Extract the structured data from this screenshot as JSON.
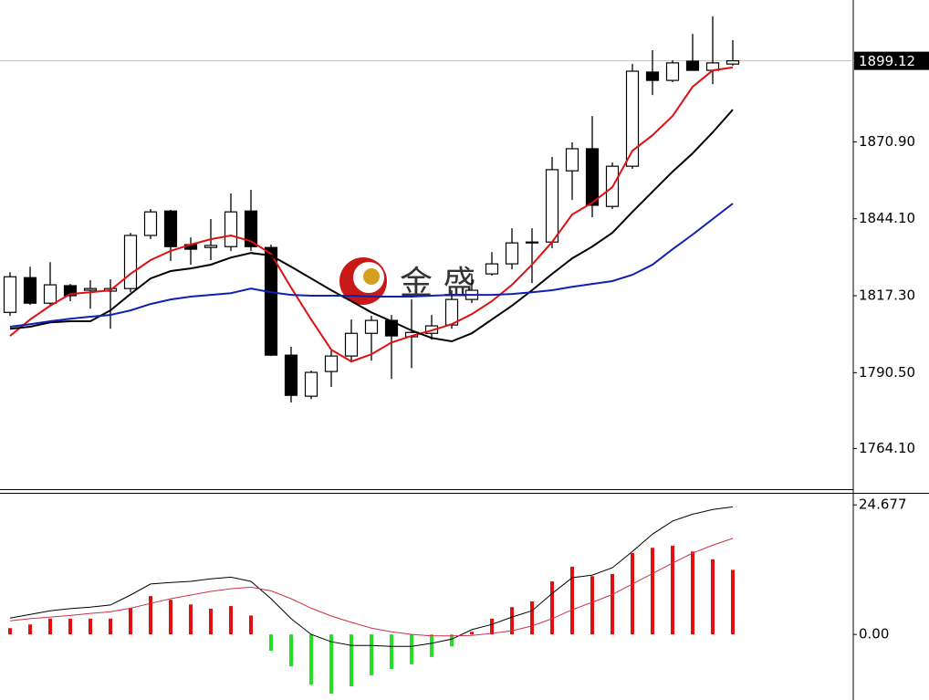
{
  "chart_data": [
    {
      "type": "candlestick",
      "open": [
        1811.5,
        1823.6,
        1814.7,
        1820.8,
        1819.2,
        1818.9,
        1819.8,
        1838.3,
        1846.8,
        1835.1,
        1834.1,
        1834.4,
        1846.8,
        1834.1,
        1796.6,
        1782.3,
        1790.9,
        1796.3,
        1804.2,
        1808.7,
        1803.0,
        1804.2,
        1807.1,
        1816.0,
        1824.9,
        1828.4,
        1835.7,
        1836.0,
        1860.8,
        1868.5,
        1848.4,
        1862.4,
        1895.2,
        1892.3,
        1899.0,
        1895.8,
        1898.0
      ],
      "high": [
        1825.5,
        1827.4,
        1829.0,
        1821.4,
        1822.7,
        1823.0,
        1839.2,
        1847.5,
        1847.2,
        1837.6,
        1844.0,
        1852.9,
        1854.2,
        1835.1,
        1799.5,
        1791.2,
        1798.2,
        1809.0,
        1810.3,
        1810.6,
        1816.0,
        1810.6,
        1819.2,
        1824.9,
        1832.5,
        1840.8,
        1840.8,
        1865.6,
        1870.7,
        1879.9,
        1863.7,
        1898.0,
        1902.8,
        1899.3,
        1908.5,
        1914.6,
        1906.3
      ],
      "low": [
        1810.3,
        1814.1,
        1813.8,
        1815.4,
        1812.8,
        1805.8,
        1818.5,
        1837.0,
        1829.4,
        1828.1,
        1829.7,
        1832.9,
        1832.9,
        1796.3,
        1780.1,
        1781.3,
        1785.5,
        1794.1,
        1794.7,
        1788.3,
        1792.1,
        1802.0,
        1805.8,
        1814.7,
        1824.3,
        1826.5,
        1821.7,
        1833.8,
        1850.7,
        1844.6,
        1847.5,
        1861.5,
        1887.2,
        1891.7,
        1895.8,
        1891.0,
        1897.4
      ],
      "close": [
        1823.9,
        1814.7,
        1821.1,
        1817.3,
        1819.8,
        1819.8,
        1838.3,
        1846.5,
        1834.4,
        1833.5,
        1834.8,
        1846.5,
        1834.4,
        1796.6,
        1782.6,
        1790.6,
        1796.3,
        1804.2,
        1808.7,
        1803.3,
        1804.5,
        1806.8,
        1816.0,
        1819.2,
        1828.4,
        1835.7,
        1836.0,
        1861.2,
        1868.5,
        1848.8,
        1862.4,
        1895.5,
        1892.3,
        1898.4,
        1895.8,
        1898.4,
        1899.12
      ],
      "up_color": "#ffffff",
      "down_color": "#000000",
      "series": [
        {
          "color": "#e01010",
          "values": [
            1803.3,
            1809.0,
            1813.8,
            1817.9,
            1818.5,
            1819.2,
            1824.9,
            1829.7,
            1832.9,
            1835.1,
            1837.0,
            1838.3,
            1836.3,
            1831.9,
            1820.1,
            1809.0,
            1798.5,
            1794.4,
            1796.9,
            1801.0,
            1803.3,
            1805.2,
            1807.4,
            1810.9,
            1815.4,
            1821.1,
            1828.1,
            1836.0,
            1845.6,
            1849.7,
            1855.1,
            1867.8,
            1873.2,
            1879.9,
            1890.1,
            1895.8,
            1896.8
          ]
        },
        {
          "color": "#000000",
          "values": [
            1805.8,
            1806.5,
            1808.0,
            1808.4,
            1808.4,
            1812.2,
            1817.9,
            1823.3,
            1825.9,
            1826.8,
            1828.1,
            1830.6,
            1832.2,
            1831.3,
            1827.4,
            1823.3,
            1819.2,
            1815.4,
            1811.5,
            1808.4,
            1805.2,
            1802.6,
            1801.4,
            1804.2,
            1809.0,
            1813.8,
            1819.2,
            1824.9,
            1830.3,
            1834.4,
            1839.2,
            1846.5,
            1853.5,
            1860.5,
            1866.9,
            1874.2,
            1882.1
          ]
        },
        {
          "color": "#1020b0",
          "values": [
            1806.5,
            1807.4,
            1808.4,
            1809.3,
            1810.0,
            1810.6,
            1812.2,
            1814.4,
            1816.0,
            1817.0,
            1817.6,
            1818.2,
            1819.8,
            1818.5,
            1817.6,
            1817.3,
            1817.3,
            1817.3,
            1817.0,
            1817.0,
            1817.0,
            1817.3,
            1817.6,
            1817.6,
            1817.6,
            1817.9,
            1818.5,
            1819.2,
            1820.4,
            1821.4,
            1822.4,
            1824.6,
            1828.1,
            1833.5,
            1838.6,
            1844.0,
            1849.4
          ]
        }
      ],
      "ylim": [
        1749.6,
        1920.3
      ],
      "yticks": [
        {
          "value": 1764.1,
          "label": "1764.10"
        },
        {
          "value": 1790.5,
          "label": "1790.50"
        },
        {
          "value": 1817.3,
          "label": "1817.30"
        },
        {
          "value": 1844.1,
          "label": "1844.10"
        },
        {
          "value": 1870.9,
          "label": "1870.90"
        }
      ],
      "last_price": {
        "value": 1899.12,
        "label": "1899.12"
      },
      "watermark": "金 盛"
    },
    {
      "type": "macd",
      "values": [
        1.2,
        1.9,
        3.0,
        3.0,
        3.0,
        3.0,
        5.0,
        7.3,
        6.6,
        5.7,
        4.9,
        5.4,
        3.6,
        -3.1,
        -6.1,
        -9.6,
        -11.3,
        -9.9,
        -7.8,
        -6.6,
        -5.7,
        -4.3,
        -2.3,
        0.5,
        3.0,
        5.2,
        6.3,
        10.1,
        12.9,
        11.1,
        11.5,
        15.5,
        16.5,
        16.9,
        15.8,
        14.3,
        12.3
      ],
      "positive_color": "#e01010",
      "negative_color": "#22e022",
      "series": [
        {
          "color": "#000000",
          "values": [
            3.1,
            3.8,
            4.5,
            4.9,
            5.2,
            5.6,
            7.5,
            9.6,
            9.9,
            10.1,
            10.6,
            10.9,
            10.1,
            6.8,
            3.0,
            0.0,
            -1.4,
            -2.1,
            -2.1,
            -2.3,
            -2.3,
            -1.7,
            -0.9,
            0.9,
            1.9,
            3.3,
            4.5,
            7.8,
            10.8,
            11.3,
            12.7,
            15.8,
            19.1,
            21.6,
            22.9,
            23.8,
            24.3
          ]
        },
        {
          "color": "#d0304a",
          "values": [
            2.6,
            3.0,
            3.3,
            3.6,
            4.0,
            4.3,
            5.0,
            5.9,
            6.8,
            7.5,
            8.2,
            8.7,
            9.0,
            8.3,
            6.8,
            5.0,
            3.5,
            2.3,
            1.2,
            0.5,
            0.0,
            -0.3,
            -0.3,
            -0.2,
            0.2,
            0.7,
            1.6,
            3.0,
            4.7,
            6.1,
            7.6,
            9.6,
            11.6,
            13.6,
            15.5,
            17.0,
            18.3
          ]
        }
      ],
      "ylim": [
        -12.5,
        26.8
      ],
      "yticks": [
        {
          "value": 0,
          "label": "0.00"
        },
        24.677
      ]
    }
  ]
}
